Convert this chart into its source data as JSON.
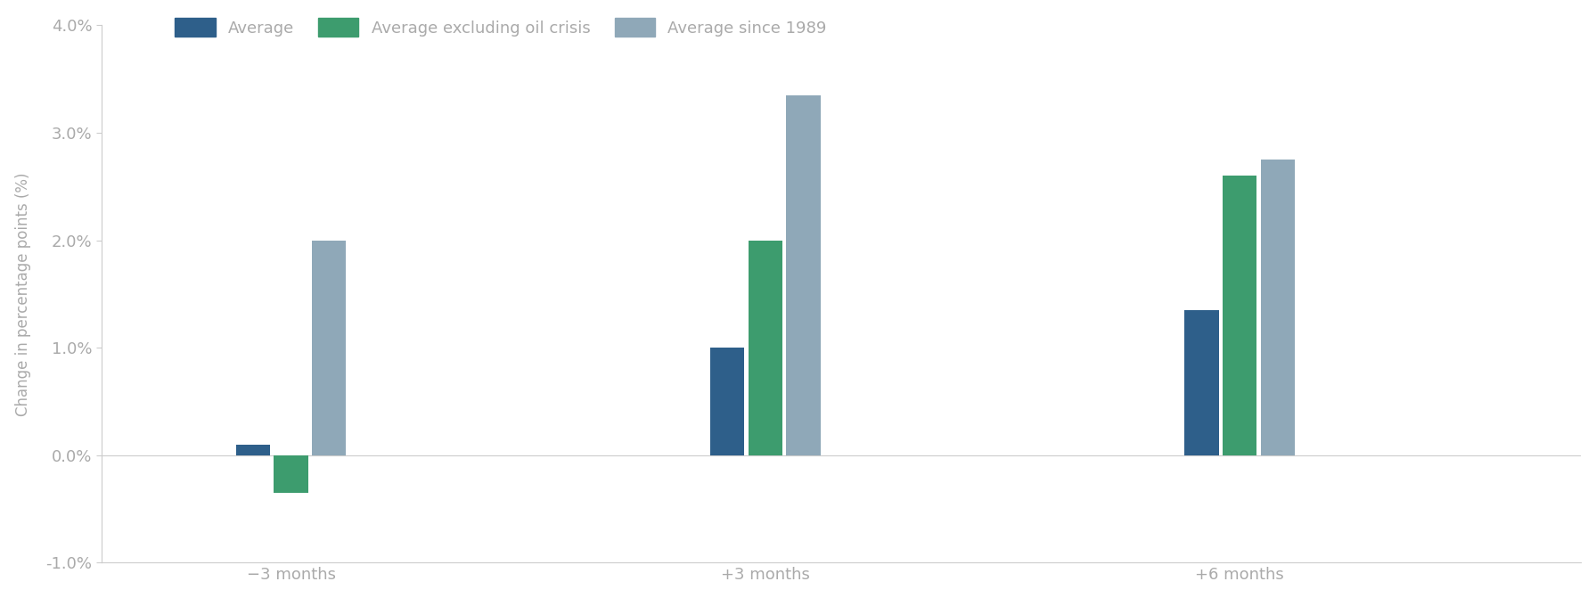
{
  "categories": [
    "−3 months",
    "+3 months",
    "+6 months"
  ],
  "series": {
    "Average": [
      0.1,
      1.0,
      1.35
    ],
    "Average excluding oil crisis": [
      -0.35,
      2.0,
      2.6
    ],
    "Average since 1989": [
      2.0,
      3.35,
      2.75
    ]
  },
  "colors": {
    "Average": "#2e5f8a",
    "Average excluding oil crisis": "#3d9c6e",
    "Average since 1989": "#8fa8b8"
  },
  "ylabel": "Change in percentage points (%)",
  "ylim": [
    -1.0,
    4.0
  ],
  "yticks": [
    -1.0,
    0.0,
    1.0,
    2.0,
    3.0,
    4.0
  ],
  "ytick_labels": [
    "-1.0%",
    "0.0%",
    "1.0%",
    "2.0%",
    "3.0%",
    "4.0%"
  ],
  "background_color": "#ffffff",
  "bar_width": 0.18,
  "bar_spacing": 0.02,
  "group_positions": [
    1.0,
    3.5,
    6.0
  ],
  "xlim": [
    0.0,
    7.8
  ]
}
